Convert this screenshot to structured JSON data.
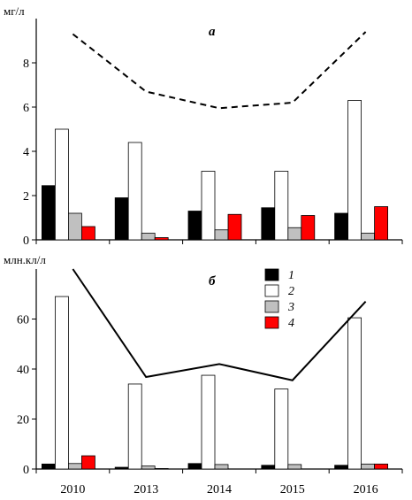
{
  "chart_data": [
    {
      "type": "bar",
      "panel_label": "а",
      "ylabel": "мг/л",
      "categories": [
        "2010",
        "2013",
        "2014",
        "2015",
        "2016"
      ],
      "ylim": [
        0,
        10
      ],
      "yticks": [
        0,
        2,
        4,
        6,
        8
      ],
      "series": [
        {
          "name": "1",
          "color": "#000000",
          "values": [
            2.45,
            1.9,
            1.3,
            1.45,
            1.2
          ]
        },
        {
          "name": "2",
          "color": "#ffffff",
          "values": [
            5.0,
            4.4,
            3.1,
            3.1,
            6.3
          ]
        },
        {
          "name": "3",
          "color": "#c0c0c0",
          "values": [
            1.2,
            0.3,
            0.45,
            0.55,
            0.3
          ]
        },
        {
          "name": "4",
          "color": "#ff0000",
          "values": [
            0.6,
            0.1,
            1.15,
            1.1,
            1.5
          ]
        }
      ],
      "line": {
        "style": "dashed",
        "values": [
          9.3,
          6.7,
          5.95,
          6.2,
          9.4
        ]
      }
    },
    {
      "type": "bar",
      "panel_label": "б",
      "ylabel": "млн.кл/л",
      "categories": [
        "2010",
        "2013",
        "2014",
        "2015",
        "2016"
      ],
      "ylim": [
        0,
        80
      ],
      "yticks": [
        0,
        20,
        40,
        60
      ],
      "series": [
        {
          "name": "1",
          "color": "#000000",
          "values": [
            2.0,
            0.7,
            2.2,
            1.5,
            1.5
          ]
        },
        {
          "name": "2",
          "color": "#ffffff",
          "values": [
            69.0,
            34.0,
            37.5,
            32.0,
            60.5
          ]
        },
        {
          "name": "3",
          "color": "#c0c0c0",
          "values": [
            2.2,
            1.2,
            1.8,
            1.8,
            2.0
          ]
        },
        {
          "name": "4",
          "color": "#ff0000",
          "values": [
            5.3,
            0.2,
            0.0,
            0.0,
            2.0
          ]
        }
      ],
      "line": {
        "style": "solid",
        "values": [
          80.0,
          36.8,
          42.0,
          35.5,
          67.0
        ]
      },
      "legend": {
        "placement": "top-center",
        "entries": [
          "1",
          "2",
          "3",
          "4"
        ]
      }
    }
  ]
}
